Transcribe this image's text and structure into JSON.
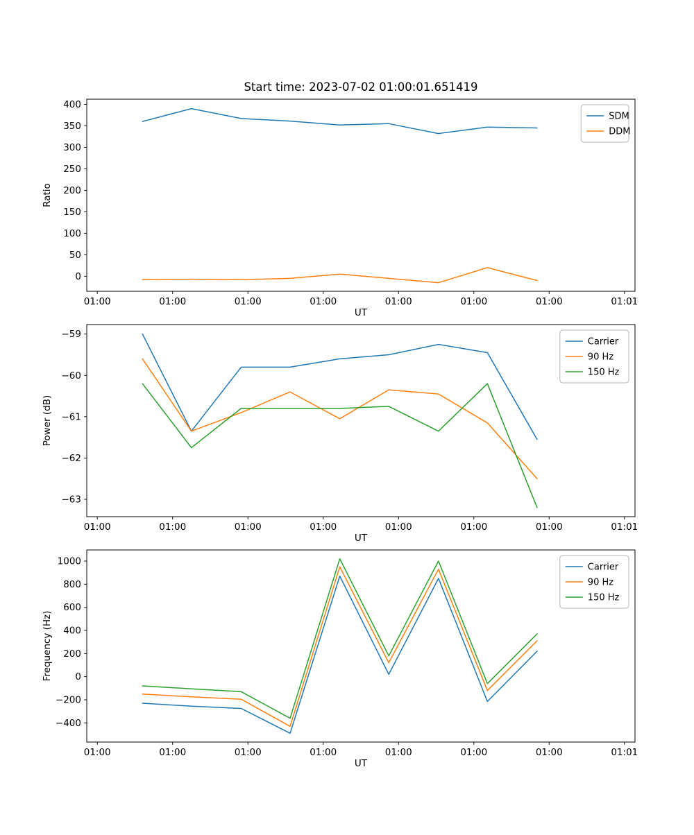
{
  "figure": {
    "title": "Start time: 2023-07-02 01:00:01.651419",
    "background": "#ffffff"
  },
  "chart_data": [
    {
      "id": "ratio",
      "type": "line",
      "title": "Start time: 2023-07-02 01:00:01.651419",
      "xlabel": "UT",
      "ylabel": "Ratio",
      "grid": false,
      "legend_position": "upper right",
      "x_tick_labels": [
        "01:00",
        "01:00",
        "01:00",
        "01:00",
        "01:00",
        "01:00",
        "01:00",
        "01:01"
      ],
      "x_tick_positions": [
        0,
        1,
        2,
        3,
        4,
        5,
        6,
        7
      ],
      "y_ticks": [
        0,
        50,
        100,
        150,
        200,
        250,
        300,
        350,
        400
      ],
      "xlim": [
        -0.14,
        7.14
      ],
      "ylim": [
        -35,
        412
      ],
      "x": [
        0.6,
        1.25,
        1.91,
        2.56,
        3.22,
        3.87,
        4.53,
        5.18,
        5.84
      ],
      "series": [
        {
          "name": "SDM",
          "color": "#1f77b4",
          "values": [
            360,
            390,
            367,
            361,
            352,
            355,
            332,
            347,
            345
          ]
        },
        {
          "name": "DDM",
          "color": "#ff7f0e",
          "values": [
            -8,
            -7,
            -8,
            -5,
            5,
            -5,
            -15,
            20,
            -10
          ]
        }
      ]
    },
    {
      "id": "power",
      "type": "line",
      "title": "",
      "xlabel": "UT",
      "ylabel": "Power (dB)",
      "grid": false,
      "legend_position": "upper right",
      "x_tick_labels": [
        "01:00",
        "01:00",
        "01:00",
        "01:00",
        "01:00",
        "01:00",
        "01:00",
        "01:01"
      ],
      "x_tick_positions": [
        0,
        1,
        2,
        3,
        4,
        5,
        6,
        7
      ],
      "y_ticks": [
        -63,
        -62,
        -61,
        -60,
        -59
      ],
      "xlim": [
        -0.14,
        7.14
      ],
      "ylim": [
        -63.42,
        -58.77
      ],
      "x": [
        0.6,
        1.25,
        1.91,
        2.56,
        3.22,
        3.87,
        4.53,
        5.18,
        5.84
      ],
      "series": [
        {
          "name": "Carrier",
          "color": "#1f77b4",
          "values": [
            -59.0,
            -61.35,
            -59.8,
            -59.8,
            -59.6,
            -59.5,
            -59.25,
            -59.45,
            -61.55
          ]
        },
        {
          "name": "90 Hz",
          "color": "#ff7f0e",
          "values": [
            -59.6,
            -61.35,
            -60.9,
            -60.4,
            -61.05,
            -60.35,
            -60.45,
            -61.15,
            -62.5
          ]
        },
        {
          "name": "150 Hz",
          "color": "#2ca02c",
          "values": [
            -60.2,
            -61.75,
            -60.8,
            -60.8,
            -60.8,
            -60.75,
            -61.35,
            -60.2,
            -63.2
          ]
        }
      ]
    },
    {
      "id": "frequency",
      "type": "line",
      "title": "",
      "xlabel": "UT",
      "ylabel": "Frequency (Hz)",
      "grid": false,
      "legend_position": "upper right",
      "x_tick_labels": [
        "01:00",
        "01:00",
        "01:00",
        "01:00",
        "01:00",
        "01:00",
        "01:00",
        "01:01"
      ],
      "x_tick_positions": [
        0,
        1,
        2,
        3,
        4,
        5,
        6,
        7
      ],
      "y_ticks": [
        -400,
        -200,
        0,
        200,
        400,
        600,
        800,
        1000
      ],
      "xlim": [
        -0.14,
        7.14
      ],
      "ylim": [
        -566,
        1096
      ],
      "x": [
        0.6,
        1.25,
        1.91,
        2.56,
        3.22,
        3.87,
        4.53,
        5.18,
        5.84
      ],
      "series": [
        {
          "name": "Carrier",
          "color": "#1f77b4",
          "values": [
            -230,
            -255,
            -275,
            -490,
            870,
            20,
            850,
            -215,
            220
          ]
        },
        {
          "name": "90 Hz",
          "color": "#ff7f0e",
          "values": [
            -150,
            -175,
            -195,
            -430,
            950,
            120,
            930,
            -120,
            310
          ]
        },
        {
          "name": "150 Hz",
          "color": "#2ca02c",
          "values": [
            -80,
            -105,
            -130,
            -360,
            1020,
            180,
            1000,
            -60,
            370
          ]
        }
      ]
    }
  ]
}
